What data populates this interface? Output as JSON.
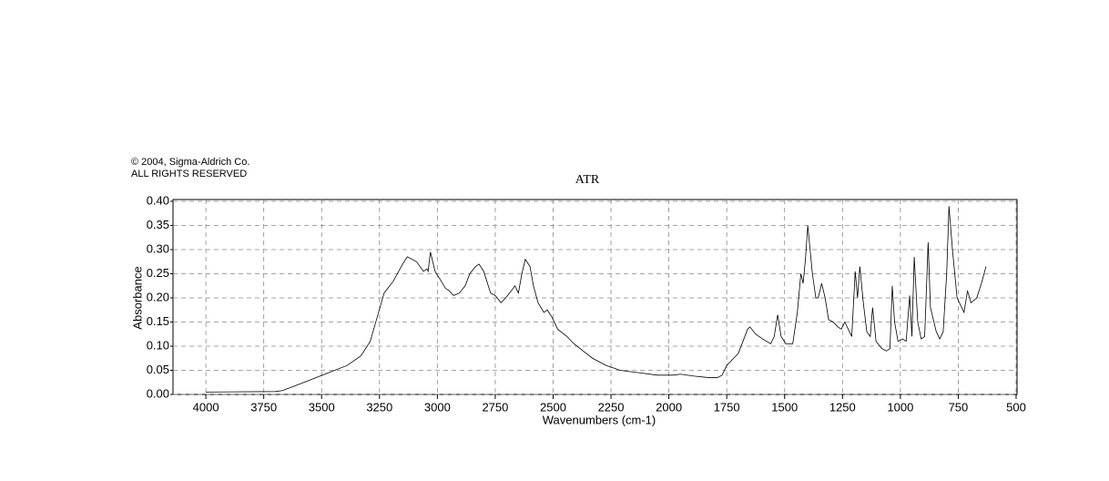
{
  "chart_data": {
    "type": "line",
    "copyright_line1": "© 2004, Sigma-Aldrich Co.",
    "copyright_line2": "ALL RIGHTS RESERVED",
    "title": "ATR",
    "x_label": "Wavenumbers (cm-1)",
    "y_label": "Absorbance",
    "color": "#000000",
    "grid": true,
    "xlim": [
      4142,
      496
    ],
    "ylim": [
      0,
      0.4
    ],
    "xticks": [
      4000,
      3750,
      3500,
      3250,
      3000,
      2750,
      2500,
      2250,
      2000,
      1750,
      1500,
      1250,
      1000,
      750,
      500
    ],
    "yticks": [
      {
        "value": 0,
        "label": "0.00"
      },
      {
        "value": 0.05,
        "label": "0.05"
      },
      {
        "value": 0.1,
        "label": "0.10"
      },
      {
        "value": 0.15,
        "label": "0.15"
      },
      {
        "value": 0.2,
        "label": "0.20"
      },
      {
        "value": 0.25,
        "label": "0.25"
      },
      {
        "value": 0.3,
        "label": "0.30"
      },
      {
        "value": 0.35,
        "label": "0.35"
      },
      {
        "value": 0.4,
        "label": "0.40"
      }
    ],
    "x": [
      4000,
      3700,
      3670,
      3630,
      3550,
      3470,
      3390,
      3330,
      3290,
      3260,
      3230,
      3190,
      3150,
      3130,
      3090,
      3060,
      3045,
      3040,
      3030,
      3010,
      2990,
      2965,
      2950,
      2930,
      2905,
      2880,
      2860,
      2835,
      2820,
      2800,
      2770,
      2750,
      2725,
      2705,
      2680,
      2665,
      2650,
      2635,
      2620,
      2600,
      2585,
      2565,
      2540,
      2525,
      2505,
      2480,
      2440,
      2410,
      2370,
      2330,
      2270,
      2210,
      2130,
      2050,
      1980,
      1950,
      1890,
      1830,
      1790,
      1770,
      1750,
      1730,
      1700,
      1680,
      1660,
      1650,
      1625,
      1595,
      1560,
      1545,
      1530,
      1515,
      1495,
      1465,
      1445,
      1430,
      1420,
      1410,
      1400,
      1380,
      1365,
      1355,
      1340,
      1325,
      1310,
      1290,
      1270,
      1255,
      1240,
      1225,
      1210,
      1195,
      1185,
      1175,
      1160,
      1145,
      1130,
      1120,
      1105,
      1080,
      1060,
      1045,
      1035,
      1025,
      1010,
      990,
      975,
      960,
      950,
      940,
      925,
      910,
      895,
      880,
      870,
      845,
      830,
      815,
      800,
      790,
      775,
      755,
      725,
      710,
      695,
      670,
      650,
      630
    ],
    "values": [
      0.005,
      0.006,
      0.008,
      0.015,
      0.03,
      0.045,
      0.06,
      0.08,
      0.11,
      0.16,
      0.21,
      0.235,
      0.27,
      0.285,
      0.275,
      0.255,
      0.26,
      0.255,
      0.295,
      0.255,
      0.24,
      0.22,
      0.215,
      0.205,
      0.21,
      0.225,
      0.25,
      0.265,
      0.27,
      0.255,
      0.21,
      0.205,
      0.19,
      0.2,
      0.215,
      0.225,
      0.21,
      0.25,
      0.28,
      0.265,
      0.225,
      0.19,
      0.17,
      0.175,
      0.16,
      0.135,
      0.12,
      0.105,
      0.09,
      0.075,
      0.06,
      0.05,
      0.045,
      0.04,
      0.04,
      0.042,
      0.038,
      0.035,
      0.035,
      0.04,
      0.06,
      0.07,
      0.085,
      0.11,
      0.135,
      0.14,
      0.125,
      0.115,
      0.105,
      0.12,
      0.165,
      0.12,
      0.105,
      0.105,
      0.17,
      0.25,
      0.23,
      0.28,
      0.35,
      0.25,
      0.2,
      0.2,
      0.23,
      0.2,
      0.155,
      0.15,
      0.14,
      0.135,
      0.15,
      0.135,
      0.12,
      0.255,
      0.2,
      0.265,
      0.19,
      0.13,
      0.12,
      0.18,
      0.11,
      0.095,
      0.09,
      0.095,
      0.225,
      0.15,
      0.11,
      0.115,
      0.11,
      0.205,
      0.12,
      0.285,
      0.15,
      0.115,
      0.12,
      0.315,
      0.18,
      0.13,
      0.115,
      0.13,
      0.25,
      0.39,
      0.3,
      0.2,
      0.17,
      0.215,
      0.19,
      0.2,
      0.23,
      0.265
    ]
  }
}
